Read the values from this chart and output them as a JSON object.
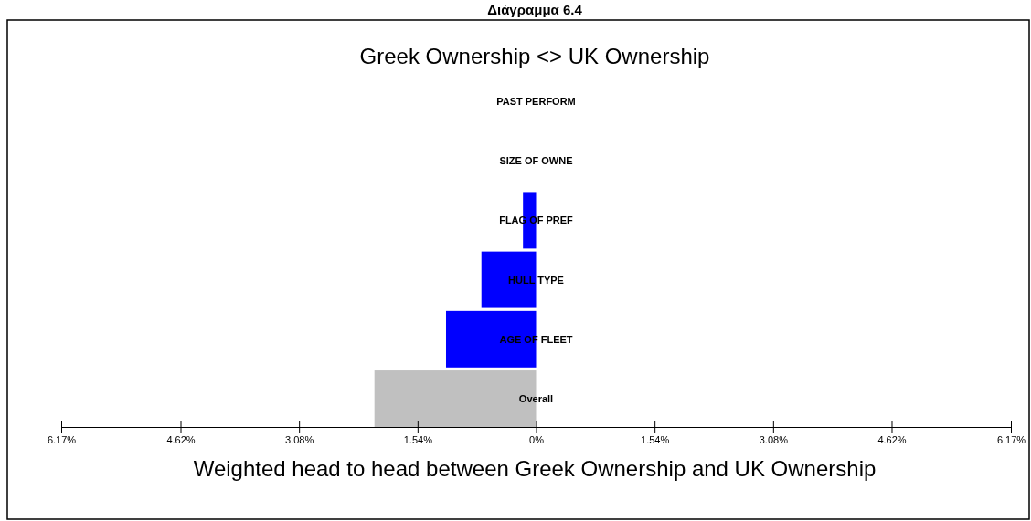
{
  "chart_data": {
    "type": "bar",
    "orientation": "horizontal",
    "title": "Greek Ownership <> UK Ownership",
    "subtitle": "Διάγραμμα 6.4",
    "xlabel": "Weighted head to head between Greek Ownership and UK Ownership",
    "categories": [
      "PAST PERFORM",
      "SIZE OF OWNE",
      "FLAG OF PREF",
      "HULL TYPE",
      "AGE OF FLEET",
      "Overall"
    ],
    "values": [
      0,
      0,
      -0.17,
      -0.71,
      -1.17,
      -2.1
    ],
    "colors": [
      "#0000ff",
      "#0000ff",
      "#0000ff",
      "#0000ff",
      "#0000ff",
      "#c0c0c0"
    ],
    "xlim": [
      -6.17,
      6.17
    ],
    "xticks": [
      {
        "value": -6.17,
        "label": "6.17%"
      },
      {
        "value": -4.62,
        "label": "4.62%"
      },
      {
        "value": -3.08,
        "label": "3.08%"
      },
      {
        "value": -1.54,
        "label": "1.54%"
      },
      {
        "value": 0,
        "label": "0%"
      },
      {
        "value": 1.54,
        "label": "1.54%"
      },
      {
        "value": 3.08,
        "label": "3.08%"
      },
      {
        "value": 4.62,
        "label": "4.62%"
      },
      {
        "value": 6.17,
        "label": "6.17%"
      }
    ],
    "grid": false
  }
}
